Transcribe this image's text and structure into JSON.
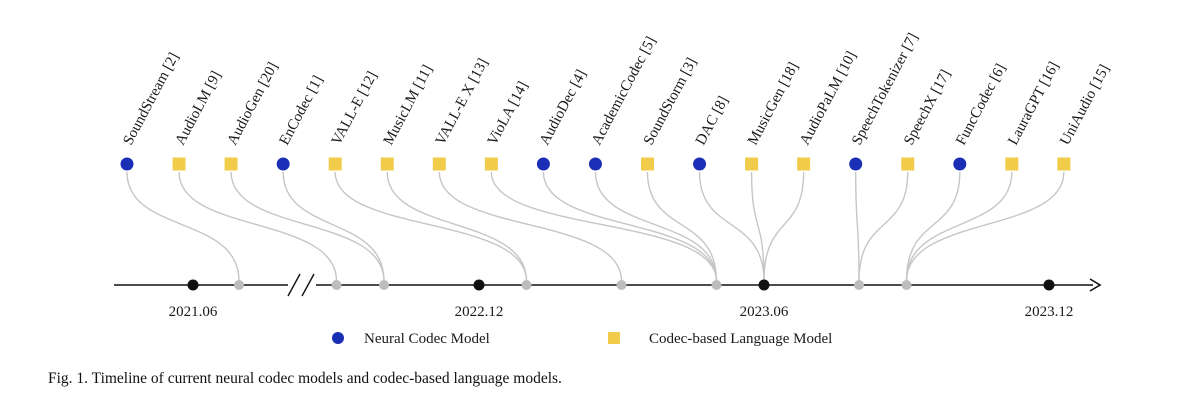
{
  "models": [
    {
      "name": "SoundStream [2]",
      "type": "neural_codec",
      "date": "2021.07"
    },
    {
      "name": "AudioLM [9]",
      "type": "codec_lm",
      "date": "2022.09"
    },
    {
      "name": "AudioGen [20]",
      "type": "codec_lm",
      "date": "2022.10"
    },
    {
      "name": "EnCodec [1]",
      "type": "neural_codec",
      "date": "2022.10"
    },
    {
      "name": "VALL-E [12]",
      "type": "codec_lm",
      "date": "2023.01"
    },
    {
      "name": "MusicLM [11]",
      "type": "codec_lm",
      "date": "2023.01"
    },
    {
      "name": "VALL-E X [13]",
      "type": "codec_lm",
      "date": "2023.03"
    },
    {
      "name": "VioLA [14]",
      "type": "codec_lm",
      "date": "2023.05"
    },
    {
      "name": "AudioDec [4]",
      "type": "neural_codec",
      "date": "2023.05"
    },
    {
      "name": "AcademicCodec [5]",
      "type": "neural_codec",
      "date": "2023.05"
    },
    {
      "name": "SoundStorm [3]",
      "type": "codec_lm",
      "date": "2023.05"
    },
    {
      "name": "DAC [8]",
      "type": "neural_codec",
      "date": "2023.06"
    },
    {
      "name": "MusicGen [18]",
      "type": "codec_lm",
      "date": "2023.06"
    },
    {
      "name": "AudioPaLM [10]",
      "type": "codec_lm",
      "date": "2023.06"
    },
    {
      "name": "SpeechTokenizer [7]",
      "type": "neural_codec",
      "date": "2023.08"
    },
    {
      "name": "SpeechX [17]",
      "type": "codec_lm",
      "date": "2023.08"
    },
    {
      "name": "FuncCodec [6]",
      "type": "neural_codec",
      "date": "2023.09"
    },
    {
      "name": "LauraGPT [16]",
      "type": "codec_lm",
      "date": "2023.09"
    },
    {
      "name": "UniAudio [15]",
      "type": "codec_lm",
      "date": "2023.09"
    }
  ],
  "axis": {
    "major_ticks": [
      "2021.06",
      "2022.12",
      "2023.06",
      "2023.12"
    ],
    "break_between": [
      "2021.06",
      "2022.12"
    ],
    "connections": [
      {
        "date": "2021.07",
        "models": [
          0
        ]
      },
      {
        "date": "2022.09",
        "models": [
          1
        ]
      },
      {
        "date": "2022.10",
        "models": [
          2,
          3
        ]
      },
      {
        "date": "2023.01",
        "models": [
          4,
          5
        ]
      },
      {
        "date": "2023.03",
        "models": [
          6
        ]
      },
      {
        "date": "2023.05",
        "models": [
          7,
          8,
          9,
          10
        ]
      },
      {
        "date": "2023.06",
        "models": [
          11,
          12,
          13
        ]
      },
      {
        "date": "2023.08",
        "models": [
          14,
          15
        ]
      },
      {
        "date": "2023.09",
        "models": [
          16,
          17,
          18
        ]
      }
    ]
  },
  "legend": {
    "neural_codec": "Neural  Codec Model",
    "codec_lm": "Codec-based Language Model"
  },
  "colors": {
    "neural_codec": "#1a2fb5",
    "codec_lm": "#f0cc4a",
    "major_point": "#111111",
    "minor_point": "#bdbdbd",
    "connector": "#c6c6c6"
  },
  "caption": "Fig. 1.  Timeline of current neural codec models and codec-based language models."
}
